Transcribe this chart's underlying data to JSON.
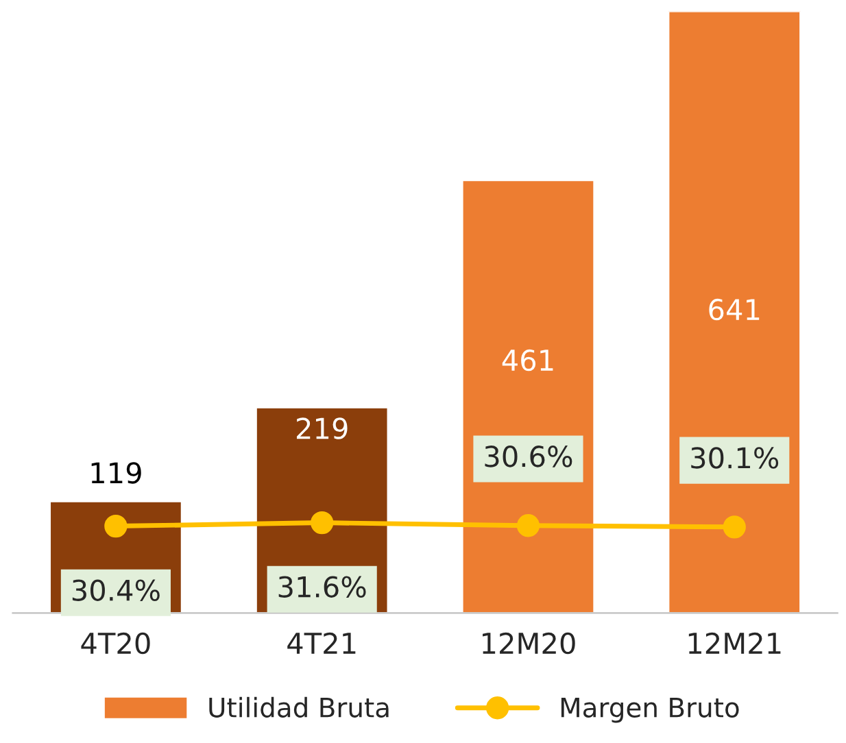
{
  "chart_data": {
    "type": "bar",
    "categories": [
      "4T20",
      "4T21",
      "12M20",
      "12M21"
    ],
    "series": [
      {
        "name": "Utilidad Bruta",
        "color": "#ed7d31",
        "colors": [
          "#8b3e0b",
          "#8b3e0b",
          "#ed7d31",
          "#ed7d31"
        ],
        "values": [
          119,
          219,
          461,
          641
        ],
        "value_labels": [
          "119",
          "219",
          "461",
          "641"
        ]
      },
      {
        "name": "Margen Bruto",
        "type": "line",
        "axis": "y2",
        "color": "#ffc000",
        "marker": "circle",
        "values": [
          30.4,
          31.6,
          30.6,
          30.1
        ],
        "value_labels": [
          "30.4%",
          "31.6%",
          "30.6%",
          "30.1%"
        ]
      }
    ],
    "tick_labels": "x",
    "grid": false,
    "legend": "bottom"
  }
}
